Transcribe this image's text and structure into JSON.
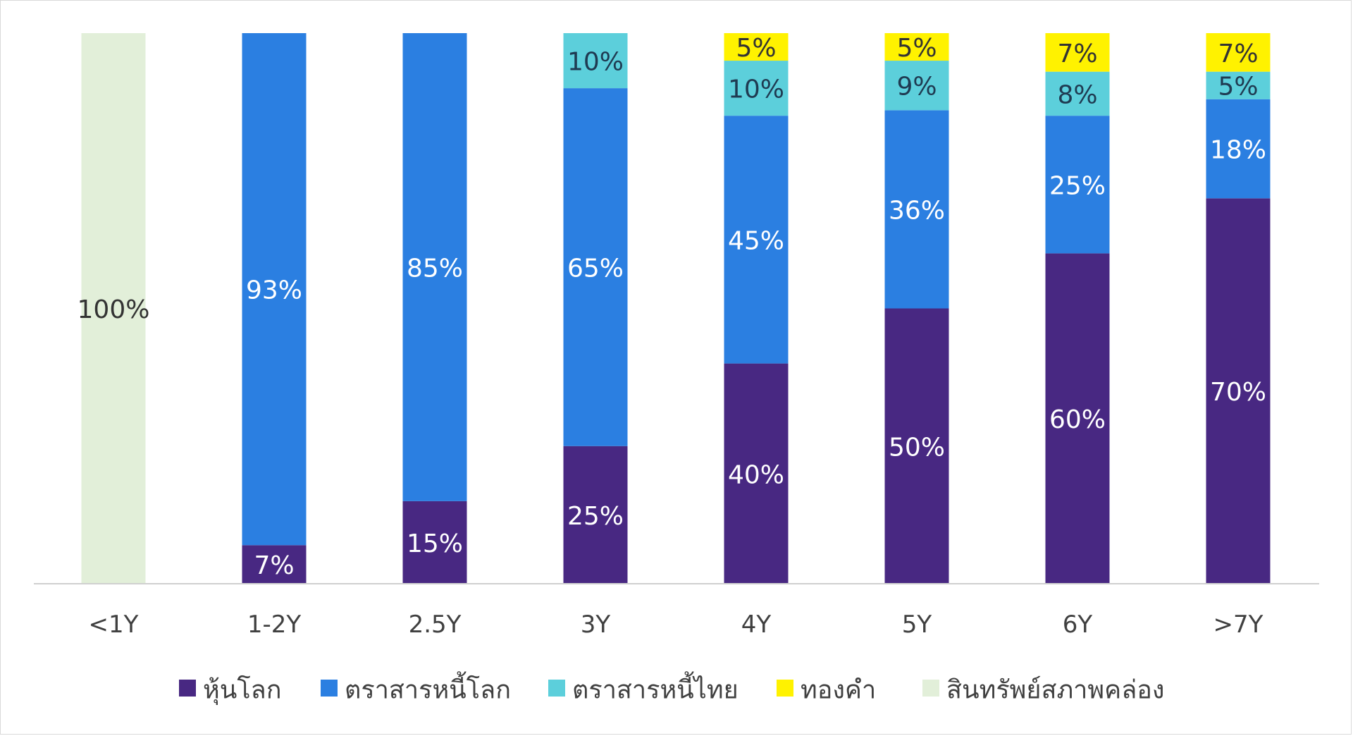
{
  "chart_data": {
    "type": "bar",
    "stacked": true,
    "categories": [
      "<1Y",
      "1-2Y",
      "2.5Y",
      "3Y",
      "4Y",
      "5Y",
      "6Y",
      ">7Y"
    ],
    "series": [
      {
        "name": "หุ้นโลก",
        "color": "#482882",
        "label_color": "#ffffff",
        "values": [
          0,
          7,
          15,
          25,
          40,
          50,
          60,
          70
        ]
      },
      {
        "name": "ตราสารหนี้โลก",
        "color": "#2b7fe1",
        "label_color": "#ffffff",
        "values": [
          0,
          93,
          85,
          65,
          45,
          36,
          25,
          18
        ]
      },
      {
        "name": "ตราสารหนี้ไทย",
        "color": "#5ccfdb",
        "label_color": "#1f3b52",
        "values": [
          0,
          0,
          0,
          10,
          10,
          9,
          8,
          5
        ]
      },
      {
        "name": "ทองคำ",
        "color": "#fff200",
        "label_color": "#333333",
        "values": [
          0,
          0,
          0,
          0,
          5,
          5,
          7,
          7
        ]
      },
      {
        "name": "สินทรัพย์สภาพคล่อง",
        "color": "#e2efd9",
        "label_color": "#333333",
        "values": [
          100,
          0,
          0,
          0,
          0,
          0,
          0,
          0
        ]
      }
    ],
    "value_suffix": "%",
    "ylim": [
      0,
      100
    ],
    "title": "",
    "xlabel": "",
    "ylabel": "",
    "grid": false,
    "legend_position": "bottom",
    "axis_color": "#d0d0d0"
  }
}
